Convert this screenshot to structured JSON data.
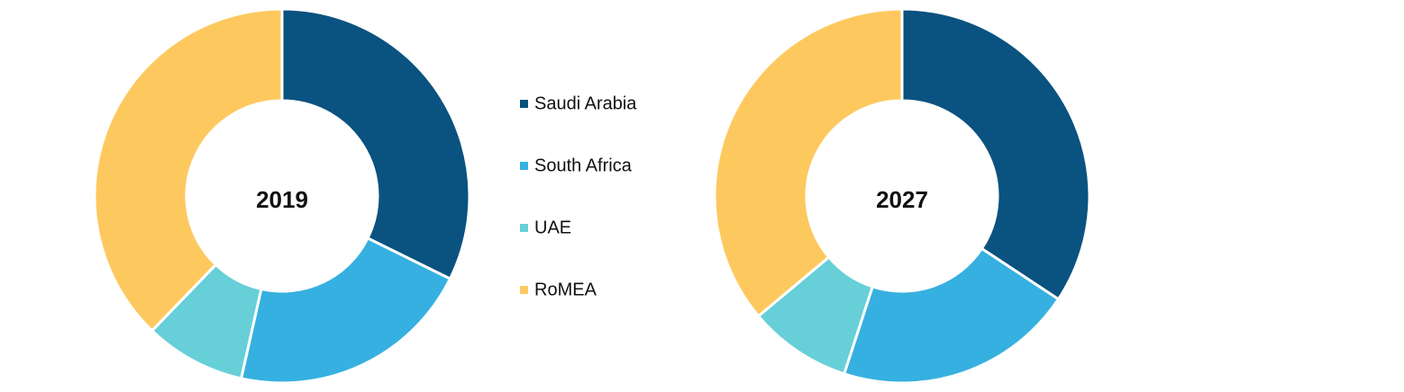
{
  "chart_data": [
    {
      "type": "donut",
      "center_label": "2019",
      "categories": [
        "Saudi Arabia",
        "South Africa",
        "UAE",
        "RoMEA"
      ],
      "colors": [
        "#0a5280",
        "#36b0e0",
        "#66cfd8",
        "#fdc95f"
      ],
      "values": [
        32.3,
        21.2,
        8.7,
        37.8
      ]
    },
    {
      "type": "donut",
      "center_label": "2027",
      "categories": [
        "Saudi Arabia",
        "South Africa",
        "UAE",
        "RoMEA"
      ],
      "colors": [
        "#0a5280",
        "#36b0e0",
        "#66cfd8",
        "#fdc95f"
      ],
      "values": [
        34.3,
        20.7,
        8.9,
        36.1
      ]
    }
  ]
}
